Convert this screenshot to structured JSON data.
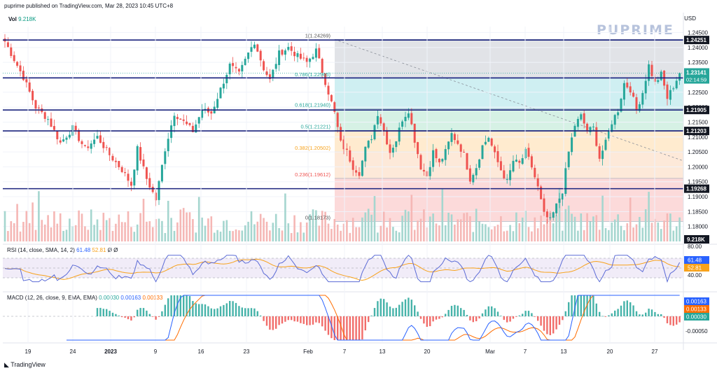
{
  "header": {
    "text": "puprime published on TradingView.com, Mar 28, 2023 10:45 UTC+8",
    "currency": "USD"
  },
  "watermark": "PUPRIME",
  "footer": "TradingView",
  "volume": {
    "label": "Vol",
    "value": "9.218K",
    "badge": "9.218K"
  },
  "rsi": {
    "label": "RSI (14, close, SMA, 14, 2)",
    "rsi_value": "61.48",
    "ma_value": "52.81",
    "suffix": "Ø Ø",
    "ticks": [
      "80.00",
      "40.00"
    ],
    "badge_rsi": "61.48",
    "badge_ma": "52.81"
  },
  "macd": {
    "label": "MACD (12, 26, close, 9, EMA, EMA)",
    "hist": "0.00030",
    "macd": "0.00163",
    "signal": "0.00133",
    "ticks": [
      "-0.00050"
    ],
    "badge_macd": "0.00163",
    "badge_signal": "0.00133",
    "badge_hist": "0.00030"
  },
  "colors": {
    "up": "#26a69a",
    "down": "#ef5350",
    "hline": "#1a237e",
    "badge": "#131722",
    "rsi": "#5b6bd6",
    "rsi_ma": "#f7a21b"
  },
  "chart_data": {
    "type": "candlestick",
    "symbol_currency": "USD",
    "ylim": [
      1.175,
      1.247
    ],
    "price_ticks": [
      1.245,
      1.24,
      1.235,
      1.23,
      1.225,
      1.22,
      1.215,
      1.21,
      1.205,
      1.2,
      1.195,
      1.19,
      1.185,
      1.18
    ],
    "x_ticks": [
      "19",
      "24",
      "2023",
      "9",
      "16",
      "23",
      "Feb",
      "7",
      "13",
      "20",
      "Mar",
      "7",
      "13",
      "20",
      "27"
    ],
    "horizontal_levels": [
      1.24251,
      1.22981,
      1.21905,
      1.21203,
      1.19268
    ],
    "horizontal_labels": [
      "1.24251",
      "1.22981",
      "1.21905",
      "1.21203",
      "1.19268"
    ],
    "current_price": {
      "value": "1.23141",
      "countdown": "02:14:59"
    },
    "fibonacci": {
      "levels": [
        {
          "ratio": "1",
          "price": "1.24269",
          "label": "1(1.24269)"
        },
        {
          "ratio": "0.786",
          "price": "1.22965",
          "label": "0.786(1.22965)"
        },
        {
          "ratio": "0.618",
          "price": "1.21940",
          "label": "0.618(1.21940)"
        },
        {
          "ratio": "0.5",
          "price": "1.21221",
          "label": "0.5(1.21221)"
        },
        {
          "ratio": "0.382",
          "price": "1.20502",
          "label": "0.382(1.20502)"
        },
        {
          "ratio": "0.236",
          "price": "1.19612",
          "label": "0.236(1.19612)"
        },
        {
          "ratio": "0",
          "price": "1.18173",
          "label": "0(1.18173)"
        }
      ]
    },
    "price_path": [
      {
        "x": 0,
        "p": 1.242
      },
      {
        "x": 6,
        "p": 1.23
      },
      {
        "x": 10,
        "p": 1.22
      },
      {
        "x": 14,
        "p": 1.216
      },
      {
        "x": 18,
        "p": 1.208
      },
      {
        "x": 22,
        "p": 1.213
      },
      {
        "x": 26,
        "p": 1.206
      },
      {
        "x": 30,
        "p": 1.21
      },
      {
        "x": 34,
        "p": 1.204
      },
      {
        "x": 38,
        "p": 1.199
      },
      {
        "x": 41,
        "p": 1.194
      },
      {
        "x": 43,
        "p": 1.206
      },
      {
        "x": 46,
        "p": 1.196
      },
      {
        "x": 49,
        "p": 1.189
      },
      {
        "x": 52,
        "p": 1.206
      },
      {
        "x": 55,
        "p": 1.218
      },
      {
        "x": 58,
        "p": 1.215
      },
      {
        "x": 61,
        "p": 1.212
      },
      {
        "x": 64,
        "p": 1.219
      },
      {
        "x": 67,
        "p": 1.218
      },
      {
        "x": 70,
        "p": 1.226
      },
      {
        "x": 73,
        "p": 1.234
      },
      {
        "x": 76,
        "p": 1.231
      },
      {
        "x": 79,
        "p": 1.238
      },
      {
        "x": 81,
        "p": 1.242
      },
      {
        "x": 84,
        "p": 1.233
      },
      {
        "x": 86,
        "p": 1.229
      },
      {
        "x": 89,
        "p": 1.238
      },
      {
        "x": 92,
        "p": 1.24
      },
      {
        "x": 95,
        "p": 1.237
      },
      {
        "x": 98,
        "p": 1.235
      },
      {
        "x": 101,
        "p": 1.239
      },
      {
        "x": 103,
        "p": 1.232
      },
      {
        "x": 105,
        "p": 1.225
      },
      {
        "x": 107,
        "p": 1.218
      },
      {
        "x": 109,
        "p": 1.208
      },
      {
        "x": 111,
        "p": 1.205
      },
      {
        "x": 113,
        "p": 1.2
      },
      {
        "x": 115,
        "p": 1.198
      },
      {
        "x": 117,
        "p": 1.206
      },
      {
        "x": 119,
        "p": 1.21
      },
      {
        "x": 121,
        "p": 1.218
      },
      {
        "x": 123,
        "p": 1.212
      },
      {
        "x": 125,
        "p": 1.205
      },
      {
        "x": 127,
        "p": 1.209
      },
      {
        "x": 129,
        "p": 1.216
      },
      {
        "x": 131,
        "p": 1.219
      },
      {
        "x": 133,
        "p": 1.209
      },
      {
        "x": 135,
        "p": 1.2
      },
      {
        "x": 137,
        "p": 1.197
      },
      {
        "x": 139,
        "p": 1.205
      },
      {
        "x": 141,
        "p": 1.201
      },
      {
        "x": 143,
        "p": 1.205
      },
      {
        "x": 145,
        "p": 1.211
      },
      {
        "x": 147,
        "p": 1.208
      },
      {
        "x": 149,
        "p": 1.204
      },
      {
        "x": 151,
        "p": 1.196
      },
      {
        "x": 153,
        "p": 1.2
      },
      {
        "x": 155,
        "p": 1.207
      },
      {
        "x": 157,
        "p": 1.21
      },
      {
        "x": 159,
        "p": 1.204
      },
      {
        "x": 161,
        "p": 1.199
      },
      {
        "x": 163,
        "p": 1.195
      },
      {
        "x": 165,
        "p": 1.202
      },
      {
        "x": 167,
        "p": 1.201
      },
      {
        "x": 169,
        "p": 1.205
      },
      {
        "x": 171,
        "p": 1.2
      },
      {
        "x": 173,
        "p": 1.193
      },
      {
        "x": 175,
        "p": 1.184
      },
      {
        "x": 177,
        "p": 1.182
      },
      {
        "x": 179,
        "p": 1.187
      },
      {
        "x": 181,
        "p": 1.192
      },
      {
        "x": 183,
        "p": 1.205
      },
      {
        "x": 185,
        "p": 1.214
      },
      {
        "x": 187,
        "p": 1.217
      },
      {
        "x": 189,
        "p": 1.212
      },
      {
        "x": 191,
        "p": 1.213
      },
      {
        "x": 193,
        "p": 1.203
      },
      {
        "x": 195,
        "p": 1.208
      },
      {
        "x": 197,
        "p": 1.215
      },
      {
        "x": 199,
        "p": 1.219
      },
      {
        "x": 201,
        "p": 1.228
      },
      {
        "x": 203,
        "p": 1.226
      },
      {
        "x": 205,
        "p": 1.219
      },
      {
        "x": 207,
        "p": 1.225
      },
      {
        "x": 209,
        "p": 1.234
      },
      {
        "x": 211,
        "p": 1.228
      },
      {
        "x": 213,
        "p": 1.231
      },
      {
        "x": 215,
        "p": 1.223
      },
      {
        "x": 217,
        "p": 1.227
      },
      {
        "x": 219,
        "p": 1.2314
      }
    ]
  }
}
